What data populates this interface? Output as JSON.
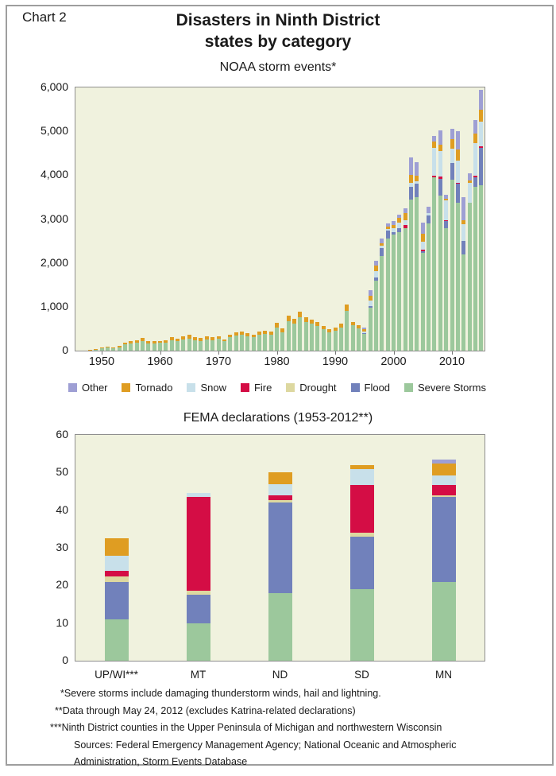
{
  "page": {
    "chart_label": "Chart 2",
    "title_line1": "Disasters in Ninth District",
    "title_line2": "states by category",
    "footnotes": [
      "*Severe storms include damaging thunderstorm winds, hail and lightning.",
      "**Data through May 24, 2012 (excludes Katrina-related declarations)",
      "***Ninth District counties in the Upper Peninsula of Michigan and northwestern Wisconsin",
      "Sources: Federal Emergency Management Agency; National Oceanic and Atmospheric",
      "Administration, Storm Events Database"
    ]
  },
  "colors": {
    "severe_storms": "#9cc89c",
    "flood": "#7181bb",
    "drought": "#ddd8a0",
    "fire": "#d40d45",
    "snow": "#c8e0ea",
    "tornado": "#df9d22",
    "other": "#9e9fd4",
    "plot_bg": "#f0f2de",
    "frame": "#9e9e9e"
  },
  "legend": {
    "items": [
      {
        "label": "Other",
        "color": "other"
      },
      {
        "label": "Tornado",
        "color": "tornado"
      },
      {
        "label": "Snow",
        "color": "snow"
      },
      {
        "label": "Fire",
        "color": "fire"
      },
      {
        "label": "Drought",
        "color": "drought"
      },
      {
        "label": "Flood",
        "color": "flood"
      },
      {
        "label": "Severe Storms",
        "color": "severe_storms"
      }
    ]
  },
  "chart_data": [
    {
      "type": "bar",
      "stacked": true,
      "title": "NOAA storm events*",
      "years_start": 1948,
      "years_end": 2015,
      "x_ticks": [
        1950,
        1960,
        1970,
        1980,
        1990,
        2000,
        2010
      ],
      "ylim": [
        0,
        6000
      ],
      "y_ticks": [
        0,
        1000,
        2000,
        3000,
        4000,
        5000,
        6000
      ],
      "y_tick_labels": [
        "0",
        "1,000",
        "2,000",
        "3,000",
        "4,000",
        "5,000",
        "6,000"
      ],
      "grid": false,
      "legend_position": "below",
      "series": [
        {
          "name": "Severe Storms",
          "color": "severe_storms",
          "values": [
            15,
            30,
            50,
            65,
            50,
            80,
            140,
            160,
            180,
            215,
            170,
            160,
            175,
            185,
            235,
            210,
            250,
            280,
            235,
            225,
            255,
            240,
            265,
            210,
            300,
            345,
            355,
            330,
            300,
            360,
            375,
            360,
            525,
            425,
            680,
            620,
            760,
            650,
            610,
            560,
            485,
            420,
            450,
            535,
            910,
            575,
            510,
            380,
            980,
            1600,
            2150,
            2550,
            2650,
            2700,
            2800,
            3450,
            3500,
            2230,
            2900,
            3950,
            3530,
            2800,
            3900,
            3380,
            2200,
            3370,
            3740,
            3770
          ]
        },
        {
          "name": "Flood",
          "color": "flood",
          "values": [
            0,
            0,
            0,
            0,
            0,
            0,
            0,
            0,
            0,
            0,
            0,
            0,
            0,
            0,
            0,
            0,
            0,
            0,
            0,
            0,
            0,
            0,
            0,
            0,
            0,
            0,
            0,
            0,
            0,
            0,
            0,
            0,
            0,
            0,
            0,
            0,
            0,
            0,
            0,
            0,
            0,
            0,
            0,
            0,
            0,
            0,
            0,
            25,
            30,
            60,
            180,
            180,
            60,
            100,
            0,
            280,
            300,
            30,
            180,
            0,
            390,
            150,
            380,
            420,
            300,
            0,
            210,
            850
          ]
        },
        {
          "name": "Drought",
          "color": "drought",
          "values": [
            0,
            0,
            0,
            0,
            0,
            0,
            0,
            0,
            0,
            0,
            0,
            0,
            0,
            0,
            0,
            0,
            0,
            0,
            0,
            0,
            0,
            0,
            0,
            0,
            0,
            0,
            0,
            0,
            0,
            0,
            0,
            0,
            0,
            0,
            0,
            0,
            0,
            0,
            0,
            0,
            0,
            0,
            0,
            0,
            0,
            0,
            0,
            0,
            0,
            0,
            0,
            0,
            0,
            0,
            0,
            0,
            0,
            0,
            0,
            0,
            0,
            0,
            0,
            0,
            0,
            0,
            0,
            0
          ]
        },
        {
          "name": "Fire",
          "color": "fire",
          "values": [
            0,
            0,
            0,
            0,
            0,
            0,
            0,
            0,
            0,
            0,
            0,
            0,
            0,
            0,
            0,
            0,
            0,
            0,
            0,
            0,
            0,
            0,
            0,
            0,
            0,
            0,
            0,
            0,
            0,
            0,
            0,
            0,
            0,
            0,
            0,
            0,
            0,
            0,
            0,
            0,
            0,
            0,
            0,
            0,
            0,
            0,
            0,
            0,
            0,
            0,
            0,
            0,
            0,
            0,
            60,
            0,
            0,
            40,
            0,
            30,
            50,
            30,
            0,
            30,
            0,
            0,
            30,
            30
          ]
        },
        {
          "name": "Snow",
          "color": "snow",
          "values": [
            0,
            0,
            0,
            0,
            0,
            0,
            0,
            0,
            0,
            0,
            0,
            0,
            0,
            0,
            0,
            0,
            0,
            0,
            0,
            0,
            0,
            0,
            0,
            0,
            0,
            0,
            0,
            0,
            0,
            0,
            0,
            0,
            0,
            0,
            0,
            0,
            0,
            0,
            0,
            0,
            0,
            0,
            0,
            0,
            0,
            0,
            0,
            25,
            130,
            150,
            60,
            40,
            80,
            120,
            120,
            90,
            60,
            180,
            60,
            640,
            580,
            450,
            330,
            510,
            380,
            450,
            760,
            575
          ]
        },
        {
          "name": "Tornado",
          "color": "tornado",
          "values": [
            5,
            10,
            30,
            25,
            20,
            30,
            40,
            55,
            60,
            70,
            55,
            50,
            50,
            55,
            65,
            60,
            70,
            80,
            65,
            60,
            65,
            60,
            65,
            50,
            65,
            75,
            85,
            75,
            65,
            80,
            80,
            80,
            115,
            90,
            120,
            110,
            130,
            110,
            100,
            90,
            80,
            70,
            70,
            90,
            140,
            80,
            70,
            65,
            120,
            130,
            60,
            60,
            80,
            100,
            160,
            190,
            130,
            190,
            0,
            140,
            150,
            30,
            210,
            240,
            90,
            60,
            210,
            260
          ]
        },
        {
          "name": "Other",
          "color": "other",
          "values": [
            0,
            0,
            0,
            0,
            0,
            0,
            0,
            0,
            0,
            0,
            0,
            0,
            0,
            0,
            0,
            0,
            0,
            0,
            0,
            0,
            0,
            0,
            0,
            0,
            0,
            0,
            0,
            0,
            0,
            0,
            0,
            0,
            0,
            0,
            0,
            0,
            0,
            0,
            0,
            0,
            0,
            0,
            0,
            0,
            0,
            0,
            0,
            35,
            120,
            110,
            100,
            70,
            80,
            80,
            110,
            390,
            310,
            240,
            140,
            140,
            330,
            90,
            240,
            420,
            530,
            170,
            300,
            460
          ]
        }
      ]
    },
    {
      "type": "bar",
      "stacked": true,
      "title": "FEMA declarations  (1953-2012**)",
      "categories": [
        "UP/WI***",
        "MT",
        "ND",
        "SD",
        "MN"
      ],
      "ylim": [
        0,
        60
      ],
      "y_ticks": [
        0,
        10,
        20,
        30,
        40,
        50,
        60
      ],
      "y_tick_labels": [
        "0",
        "10",
        "20",
        "30",
        "40",
        "50",
        "60"
      ],
      "grid": false,
      "series": [
        {
          "name": "Severe Storms",
          "color": "severe_storms",
          "values": [
            11,
            10,
            18,
            19,
            21
          ]
        },
        {
          "name": "Flood",
          "color": "flood",
          "values": [
            10,
            7.5,
            24,
            14,
            22.5
          ]
        },
        {
          "name": "Drought",
          "color": "drought",
          "values": [
            1.5,
            1,
            0.7,
            1,
            0.5
          ]
        },
        {
          "name": "Fire",
          "color": "fire",
          "values": [
            1.3,
            25,
            1.3,
            12.7,
            2.7
          ]
        },
        {
          "name": "Snow",
          "color": "snow",
          "values": [
            4,
            1,
            2.9,
            4.2,
            2.5
          ]
        },
        {
          "name": "Tornado",
          "color": "tornado",
          "values": [
            4.8,
            0,
            3.1,
            1.1,
            3.3
          ]
        },
        {
          "name": "Other",
          "color": "other",
          "values": [
            0,
            0,
            0,
            0,
            1
          ]
        }
      ]
    }
  ]
}
